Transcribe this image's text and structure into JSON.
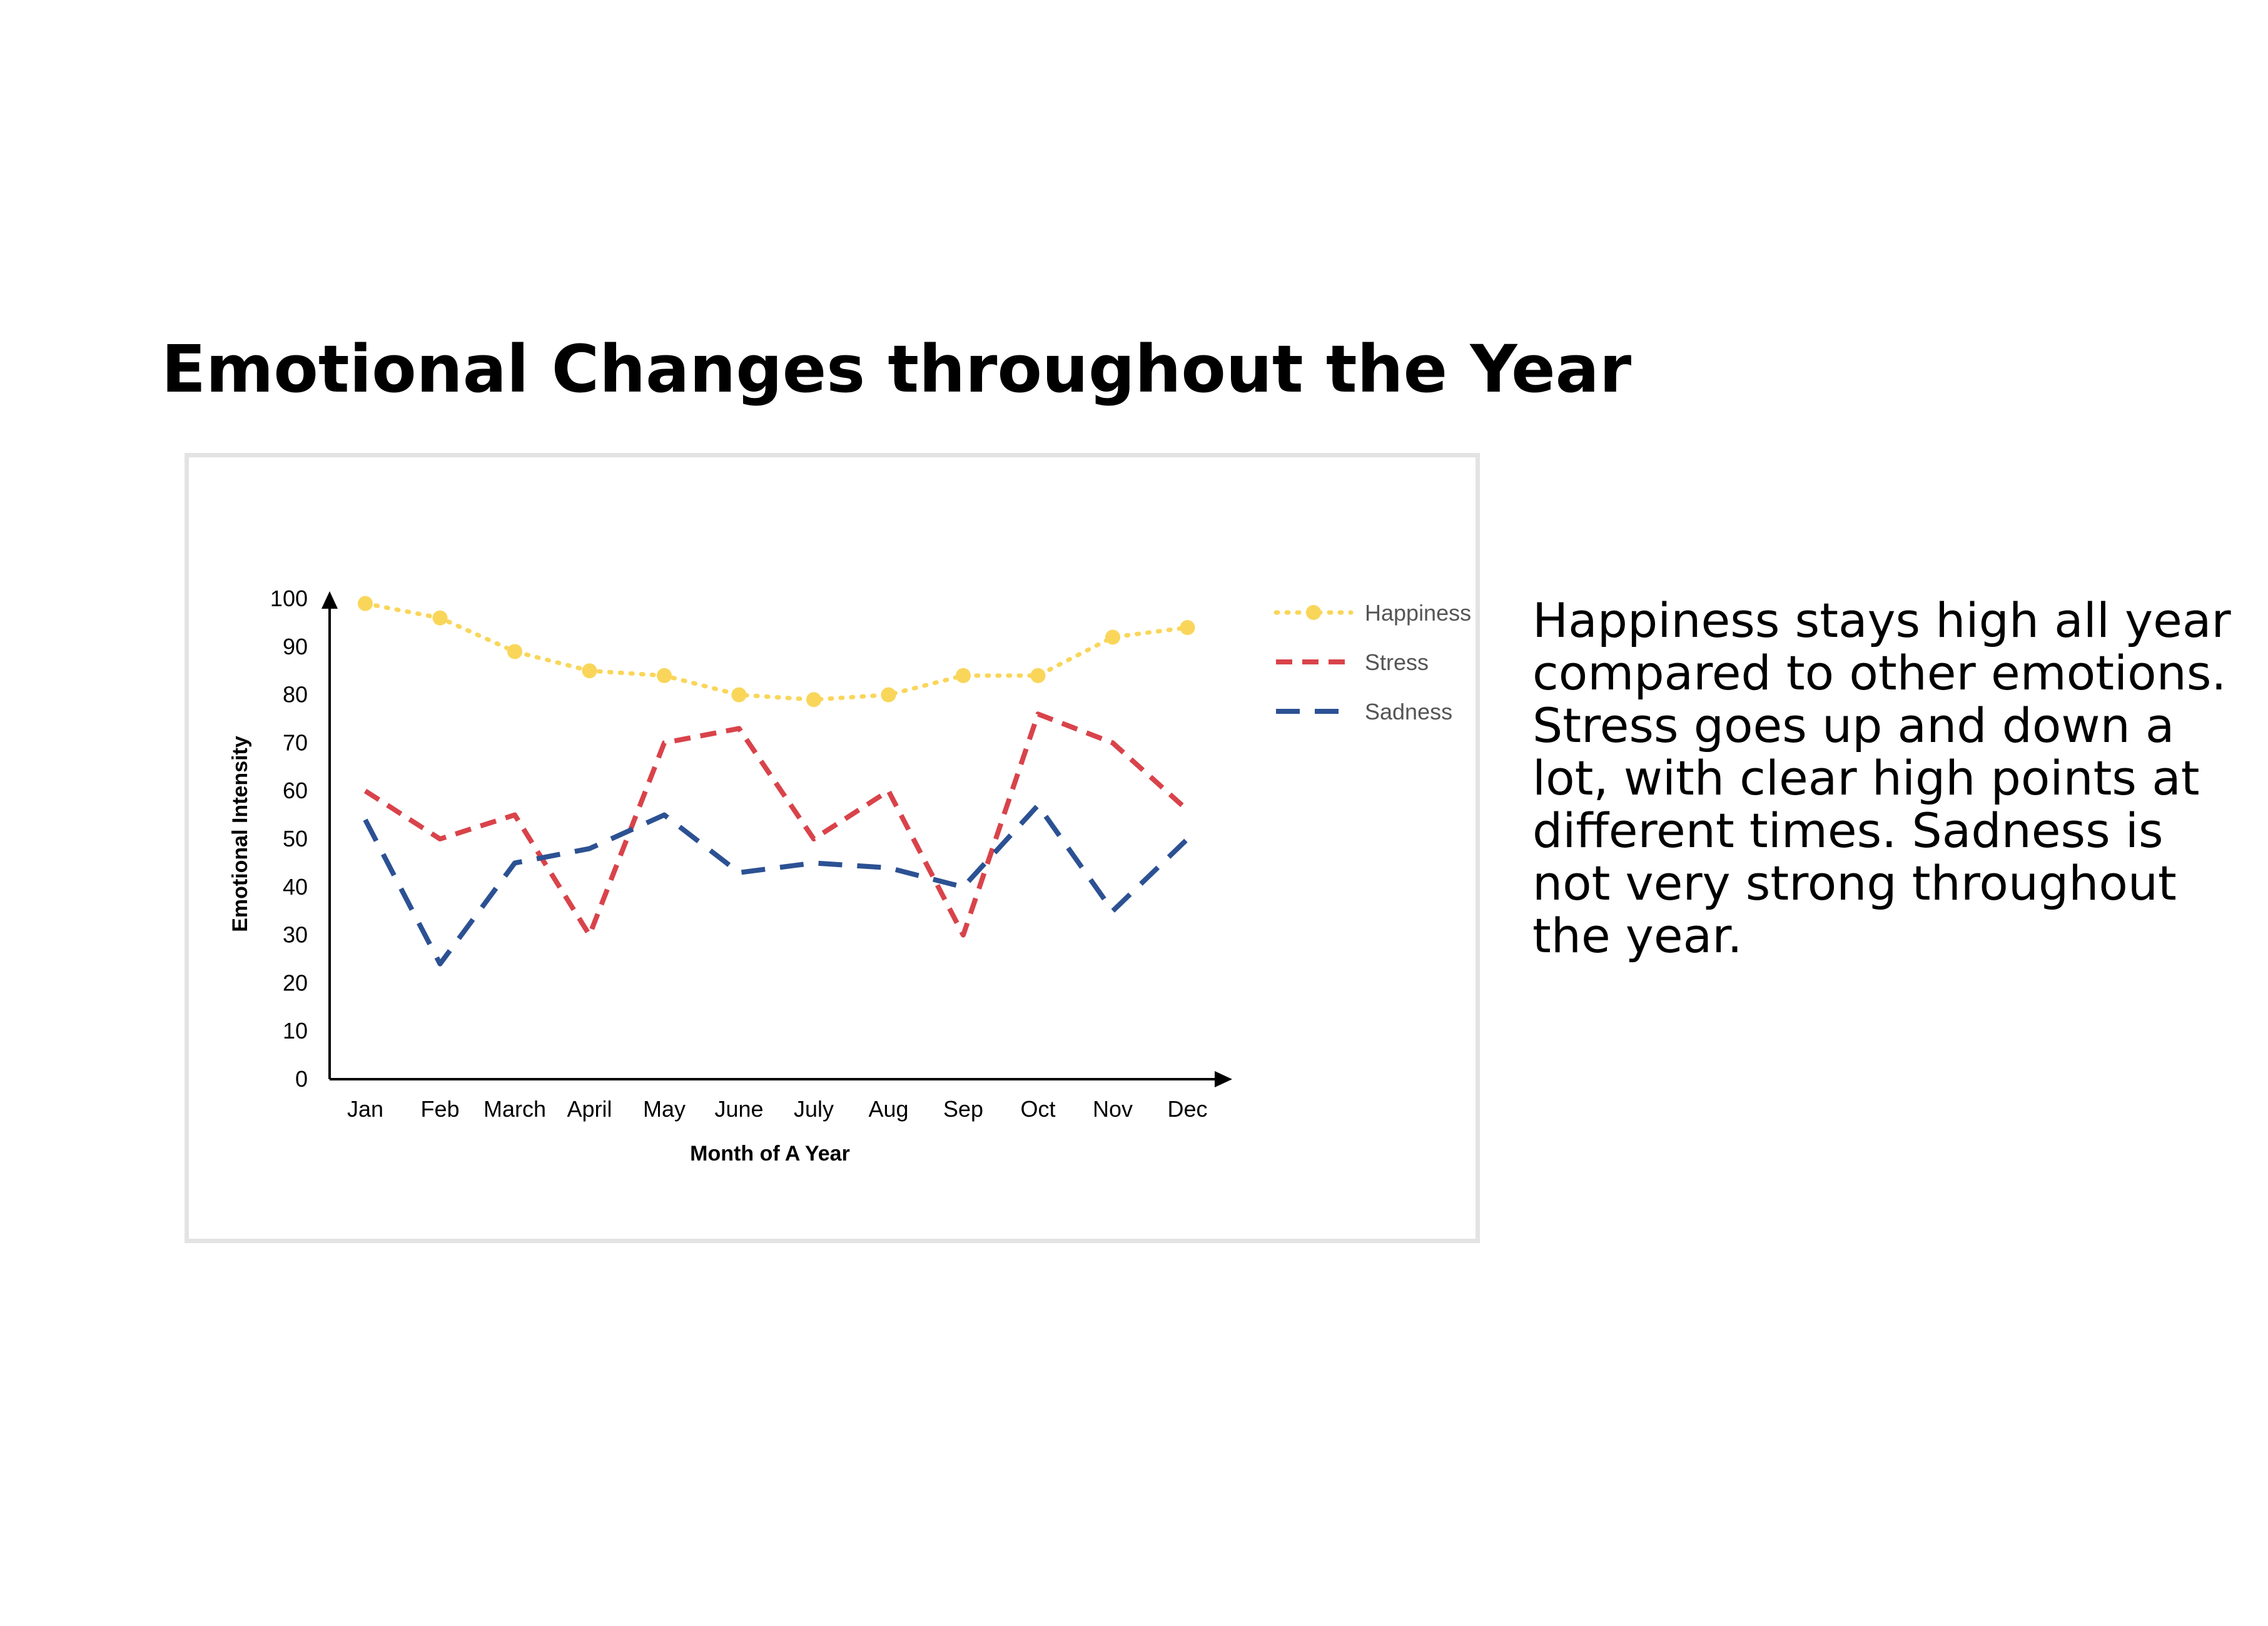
{
  "page": {
    "title": "Emotional Changes throughout the Year",
    "description": "Happiness stays high all year compared to other emotions. Stress goes up and down a lot, with clear high points at different times. Sadness is not very strong throughout the year."
  },
  "chart_data": {
    "type": "line",
    "categories": [
      "Jan",
      "Feb",
      "March",
      "April",
      "May",
      "June",
      "July",
      "Aug",
      "Sep",
      "Oct",
      "Nov",
      "Dec"
    ],
    "xlabel": "Month of A Year",
    "ylabel": "Emotional Intensity",
    "ylim": [
      0,
      100
    ],
    "yticks": [
      0,
      10,
      20,
      30,
      40,
      50,
      60,
      70,
      80,
      90,
      100
    ],
    "grid": false,
    "legend_position": "top-right",
    "series": [
      {
        "name": "Happiness",
        "color": "#f9d65a",
        "line_style": "dotted",
        "markers": true,
        "values": [
          99,
          96,
          89,
          85,
          84,
          80,
          79,
          80,
          84,
          84,
          92,
          94
        ]
      },
      {
        "name": "Stress",
        "color": "#d9434a",
        "line_style": "dashed",
        "markers": false,
        "values": [
          60,
          50,
          55,
          30,
          70,
          73,
          50,
          60,
          30,
          76,
          70,
          56
        ]
      },
      {
        "name": "Sadness",
        "color": "#2c5193",
        "line_style": "long-dashed",
        "markers": false,
        "values": [
          54,
          24,
          45,
          48,
          55,
          43,
          45,
          44,
          40,
          57,
          35,
          50
        ]
      }
    ]
  }
}
